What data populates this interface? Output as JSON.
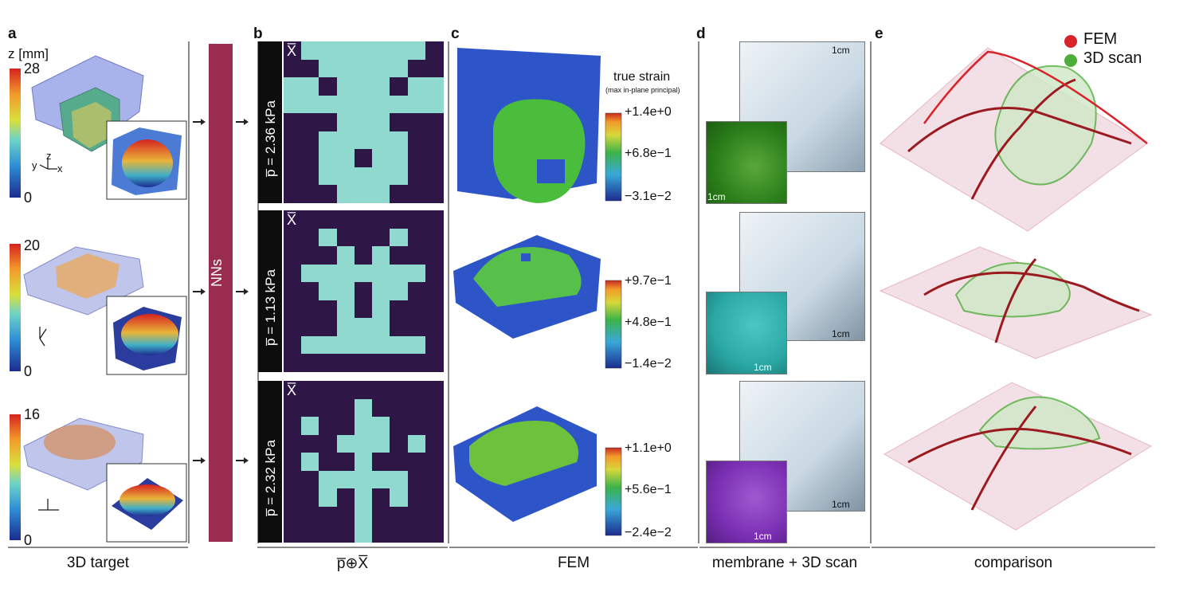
{
  "panels": {
    "a": "a",
    "b": "b",
    "c": "c",
    "d": "d",
    "e": "e"
  },
  "captions": {
    "a": "3D target",
    "b": "p̅⊕X̅",
    "c": "FEM",
    "d": "membrane + 3D scan",
    "e": "comparison"
  },
  "nn_label": "NNs",
  "z_axis_label": "z [mm]",
  "z_max_values": [
    "28",
    "20",
    "16"
  ],
  "z_min_value": "0",
  "axis_labels": [
    "y",
    "z",
    "x"
  ],
  "pressures": [
    "p̅ = 2.36 kPa",
    "p̅ = 1.13 kPa",
    "p̅ = 2.32 kPa"
  ],
  "x_bar": "X̅",
  "strain_title": "true strain",
  "strain_subtitle": "(max in-plane principal)",
  "strain_ticks": [
    [
      "+1.4e+0",
      "+6.8e−1",
      "−3.1e−2"
    ],
    [
      "+9.7e−1",
      "+4.8e−1",
      "−1.4e−2"
    ],
    [
      "+1.1e+0",
      "+5.6e−1",
      "−2.4e−2"
    ]
  ],
  "scale_label": "1cm",
  "legend": [
    {
      "label": "FEM",
      "color": "#d9232a"
    },
    {
      "label": "3D scan",
      "color": "#4fae3b"
    }
  ],
  "colors": {
    "dark_cell": "#2e1747",
    "light_cell": "#8fd9cf",
    "nn_bar": "#9a2c4f",
    "fem_green": "#2a7e1a",
    "fem_teal": "#2aa7a4",
    "fem_purple": "#7a2fb3"
  },
  "grids": [
    [
      [
        1,
        0,
        0,
        0,
        0,
        0,
        0,
        0,
        1
      ],
      [
        1,
        1,
        0,
        0,
        0,
        0,
        0,
        1,
        1
      ],
      [
        0,
        0,
        1,
        0,
        0,
        0,
        1,
        0,
        0
      ],
      [
        0,
        0,
        0,
        0,
        0,
        0,
        0,
        0,
        0
      ],
      [
        1,
        1,
        1,
        0,
        0,
        0,
        1,
        1,
        1
      ],
      [
        1,
        1,
        0,
        0,
        0,
        0,
        0,
        1,
        1
      ],
      [
        1,
        1,
        0,
        0,
        1,
        0,
        0,
        1,
        1
      ],
      [
        1,
        1,
        0,
        0,
        0,
        0,
        0,
        1,
        1
      ],
      [
        1,
        1,
        1,
        0,
        0,
        0,
        1,
        1,
        1
      ]
    ],
    [
      [
        1,
        1,
        1,
        1,
        1,
        1,
        1,
        1,
        1
      ],
      [
        1,
        1,
        0,
        1,
        1,
        1,
        0,
        1,
        1
      ],
      [
        1,
        1,
        1,
        0,
        1,
        0,
        1,
        1,
        1
      ],
      [
        1,
        0,
        0,
        0,
        0,
        0,
        0,
        0,
        1
      ],
      [
        1,
        1,
        0,
        0,
        1,
        0,
        0,
        1,
        1
      ],
      [
        1,
        1,
        1,
        0,
        1,
        0,
        1,
        1,
        1
      ],
      [
        1,
        1,
        1,
        0,
        0,
        0,
        1,
        1,
        1
      ],
      [
        1,
        0,
        0,
        0,
        0,
        0,
        0,
        0,
        1
      ],
      [
        1,
        1,
        1,
        1,
        1,
        1,
        1,
        1,
        1
      ]
    ],
    [
      [
        1,
        1,
        1,
        1,
        1,
        1,
        1,
        1,
        1
      ],
      [
        1,
        1,
        1,
        1,
        0,
        1,
        1,
        1,
        1
      ],
      [
        1,
        0,
        1,
        1,
        0,
        0,
        1,
        1,
        1
      ],
      [
        1,
        1,
        1,
        0,
        0,
        0,
        1,
        0,
        1
      ],
      [
        1,
        0,
        1,
        1,
        0,
        1,
        1,
        1,
        1
      ],
      [
        1,
        1,
        0,
        0,
        0,
        0,
        0,
        1,
        1
      ],
      [
        1,
        1,
        0,
        1,
        0,
        1,
        0,
        1,
        1
      ],
      [
        1,
        1,
        1,
        1,
        0,
        1,
        1,
        1,
        1
      ],
      [
        1,
        1,
        1,
        1,
        0,
        1,
        1,
        1,
        1
      ]
    ]
  ]
}
